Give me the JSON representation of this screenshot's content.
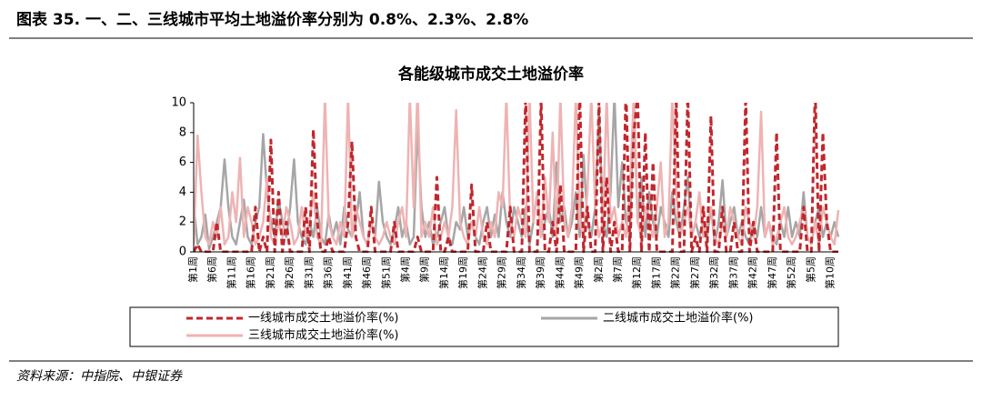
{
  "header": {
    "title": "图表 35. 一、二、三线城市平均土地溢价率分别为 0.8%、2.3%、2.8%"
  },
  "source": "资料来源：中指院、中银证券",
  "chart_data": {
    "type": "line",
    "title": "各能级城市成交土地溢价率",
    "categories": [
      "第1周",
      null,
      null,
      null,
      null,
      "第6周",
      null,
      null,
      null,
      null,
      "第11周",
      null,
      null,
      null,
      null,
      "第16周",
      null,
      null,
      null,
      null,
      "第21周",
      null,
      null,
      null,
      null,
      "第26周",
      null,
      null,
      null,
      null,
      "第31周",
      null,
      null,
      null,
      null,
      "第36周",
      null,
      null,
      null,
      null,
      "第41周",
      null,
      null,
      null,
      null,
      "第46周",
      null,
      null,
      null,
      null,
      "第51周",
      null,
      null,
      null,
      null,
      "第4周",
      null,
      null,
      null,
      null,
      "第9周",
      null,
      null,
      null,
      null,
      "第14周",
      null,
      null,
      null,
      null,
      "第19周",
      null,
      null,
      null,
      null,
      "第24周",
      null,
      null,
      null,
      null,
      "第29周",
      null,
      null,
      null,
      null,
      "第34周",
      null,
      null,
      null,
      null,
      "第39周",
      null,
      null,
      null,
      null,
      "第44周",
      null,
      null,
      null,
      null,
      "第49周",
      null,
      null,
      null,
      null,
      "第2周",
      null,
      null,
      null,
      null,
      "第7周",
      null,
      null,
      null,
      null,
      "第12周",
      null,
      null,
      null,
      null,
      "第17周",
      null,
      null,
      null,
      null,
      "第22周",
      null,
      null,
      null,
      null,
      "第27周",
      null,
      null,
      null,
      null,
      "第32周",
      null,
      null,
      null,
      null,
      "第37周",
      null,
      null,
      null,
      null,
      "第42周",
      null,
      null,
      null,
      null,
      "第47周",
      null,
      null,
      null,
      null,
      "第52周",
      null,
      null,
      null,
      null,
      "第5周",
      null,
      null,
      null,
      null,
      "第10周",
      null,
      null
    ],
    "series": [
      {
        "name": "一线城市成交土地溢价率(%)",
        "color": "#c0272d",
        "dash": true,
        "values": [
          0,
          0.5,
          0,
          0,
          0,
          0,
          2,
          0,
          0,
          0,
          0,
          0,
          0,
          0,
          0,
          0,
          3,
          0,
          1,
          0,
          7.5,
          0,
          4,
          0,
          2,
          0,
          0,
          0,
          0,
          3,
          0,
          8.2,
          2,
          0,
          0,
          1,
          0,
          0,
          0,
          0,
          2,
          7.4,
          1,
          0,
          0,
          0,
          3,
          0,
          0,
          0,
          0,
          0,
          2,
          0,
          0,
          0,
          0,
          0,
          1,
          0,
          0,
          0,
          0,
          5,
          0,
          0,
          1,
          0,
          0,
          0,
          0,
          0,
          4.5,
          0,
          0,
          0,
          2,
          0,
          0,
          0,
          0,
          0,
          3,
          0,
          0,
          0,
          10.5,
          0,
          0,
          0,
          10.2,
          0,
          0,
          2,
          0,
          4.5,
          0,
          0,
          0,
          0,
          10.8,
          0,
          3,
          0,
          0,
          10.1,
          0,
          5,
          0,
          2,
          0,
          0,
          11,
          0,
          7.9,
          10.5,
          0,
          8,
          0,
          6,
          0,
          0,
          0,
          0,
          0,
          10.3,
          0,
          0,
          10.6,
          0,
          1,
          0,
          3,
          0,
          9.1,
          0,
          0,
          3,
          0,
          0,
          2,
          0,
          0,
          10.4,
          0,
          2,
          0,
          0,
          0,
          0,
          0,
          8,
          0,
          0,
          0,
          0,
          0,
          0,
          3,
          0,
          0,
          11,
          0,
          8,
          2,
          0,
          0,
          0
        ]
      },
      {
        "name": "二线城市成交土地溢价率(%)",
        "color": "#a6a6a6",
        "dash": false,
        "values": [
          3.2,
          0.5,
          1,
          2.5,
          0.2,
          1,
          2,
          3,
          6.2,
          3,
          1,
          0.5,
          2,
          3.5,
          1,
          0.5,
          2,
          3,
          7.9,
          4,
          2,
          1,
          3.5,
          2,
          1,
          3,
          6.2,
          2,
          1,
          0.5,
          2,
          1,
          3,
          1,
          0.5,
          2.5,
          1,
          2,
          0.5,
          3,
          1.5,
          1,
          2,
          4,
          1,
          0.5,
          2,
          1,
          4.7,
          2,
          1,
          0.5,
          1.5,
          3,
          1,
          2,
          0.5,
          1,
          8.5,
          3,
          1,
          2,
          0.5,
          1,
          2,
          3,
          1,
          0.5,
          2,
          1.5,
          3,
          1,
          2,
          1,
          0.5,
          2,
          3,
          1,
          2.5,
          1,
          4,
          2,
          1,
          3,
          2,
          1,
          3,
          0.5,
          2,
          4,
          1,
          2,
          3,
          1,
          6,
          2,
          3,
          1,
          2,
          4,
          1,
          6.5,
          2,
          1,
          3,
          9.5,
          2,
          1,
          4,
          10.5,
          3,
          6,
          2,
          1,
          10.5,
          2,
          5,
          1,
          4,
          2,
          1,
          3,
          2,
          1,
          4,
          2,
          1,
          3,
          5,
          1,
          2,
          1,
          2,
          1,
          3,
          0.5,
          2,
          4.8,
          1,
          2,
          3,
          1,
          2,
          1,
          0.5,
          2,
          1,
          3,
          1,
          2,
          1,
          0.5,
          2,
          1,
          3,
          1,
          2,
          1,
          4,
          1,
          0.5,
          2,
          3,
          1,
          2,
          1,
          2,
          1
        ]
      },
      {
        "name": "三线城市成交土地溢价率(%)",
        "color": "#efb3b3",
        "dash": false,
        "values": [
          0.5,
          7.8,
          4,
          1,
          0.5,
          2,
          1,
          3,
          0.5,
          1,
          4,
          2,
          6.3,
          1,
          3,
          2,
          0.5,
          1,
          2,
          5,
          1,
          0.5,
          2,
          1,
          3,
          2,
          0.5,
          1,
          3,
          1,
          2,
          4,
          1,
          0.5,
          10.5,
          2,
          1,
          0.5,
          2,
          1,
          10.5,
          1,
          3,
          2,
          1,
          0.5,
          2,
          1,
          0.5,
          1,
          2,
          1,
          0.5,
          2,
          3,
          1,
          10.5,
          3,
          11,
          1,
          2,
          1,
          3,
          0.5,
          1,
          2,
          1,
          3,
          9.5,
          2,
          1,
          0.5,
          2,
          1,
          3,
          1,
          0.5,
          2,
          1,
          4,
          3,
          10.5,
          2,
          1,
          3,
          2,
          1,
          10.5,
          2,
          4,
          1,
          5,
          2,
          8,
          1,
          10.5,
          2,
          1,
          3,
          10.5,
          2,
          1,
          4,
          10.5,
          3,
          1,
          2,
          10.5,
          2,
          3,
          1,
          2,
          1,
          4,
          10.5,
          2,
          1,
          3,
          2,
          1,
          3,
          6,
          1,
          2,
          10.5,
          4,
          1,
          2,
          3,
          1,
          2,
          4,
          1,
          2,
          3,
          1,
          0.5,
          2,
          1,
          3,
          2,
          1,
          0.5,
          3,
          2,
          1,
          3,
          9.4,
          1,
          2,
          0.5,
          1,
          2,
          3,
          1,
          0.5,
          1,
          2,
          3,
          1,
          0.5,
          2,
          0.5,
          3,
          2,
          1,
          0.5,
          2.8
        ]
      }
    ],
    "ylim": [
      0,
      10
    ],
    "yticks": [
      0,
      2,
      4,
      6,
      8,
      10
    ],
    "grid": false
  }
}
